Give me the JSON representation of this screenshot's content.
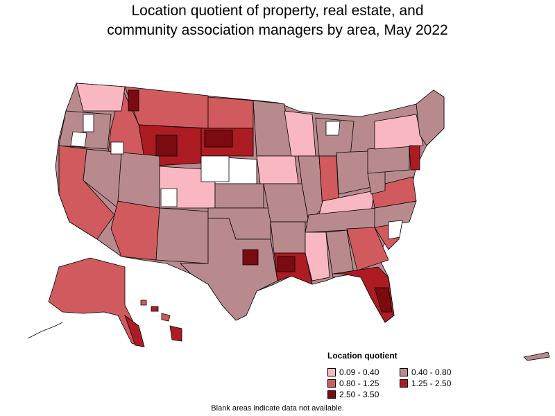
{
  "title_line1": "Location quotient of property, real estate, and",
  "title_line2": "community association managers by area, May 2022",
  "legend": {
    "title": "Location quotient",
    "items": [
      {
        "label": "0.09 - 0.40",
        "color": "#f9b8c1"
      },
      {
        "label": "0.40 - 0.80",
        "color": "#b98a8d"
      },
      {
        "label": "0.80 - 1.25",
        "color": "#d05a5d"
      },
      {
        "label": "1.25 - 2.50",
        "color": "#ad1c22"
      },
      {
        "label": "2.50 - 3.50",
        "color": "#7a0b10"
      }
    ]
  },
  "footnote": "Blank areas indicate data not available.",
  "colors": {
    "border": "#000000",
    "blank": "#ffffff"
  }
}
